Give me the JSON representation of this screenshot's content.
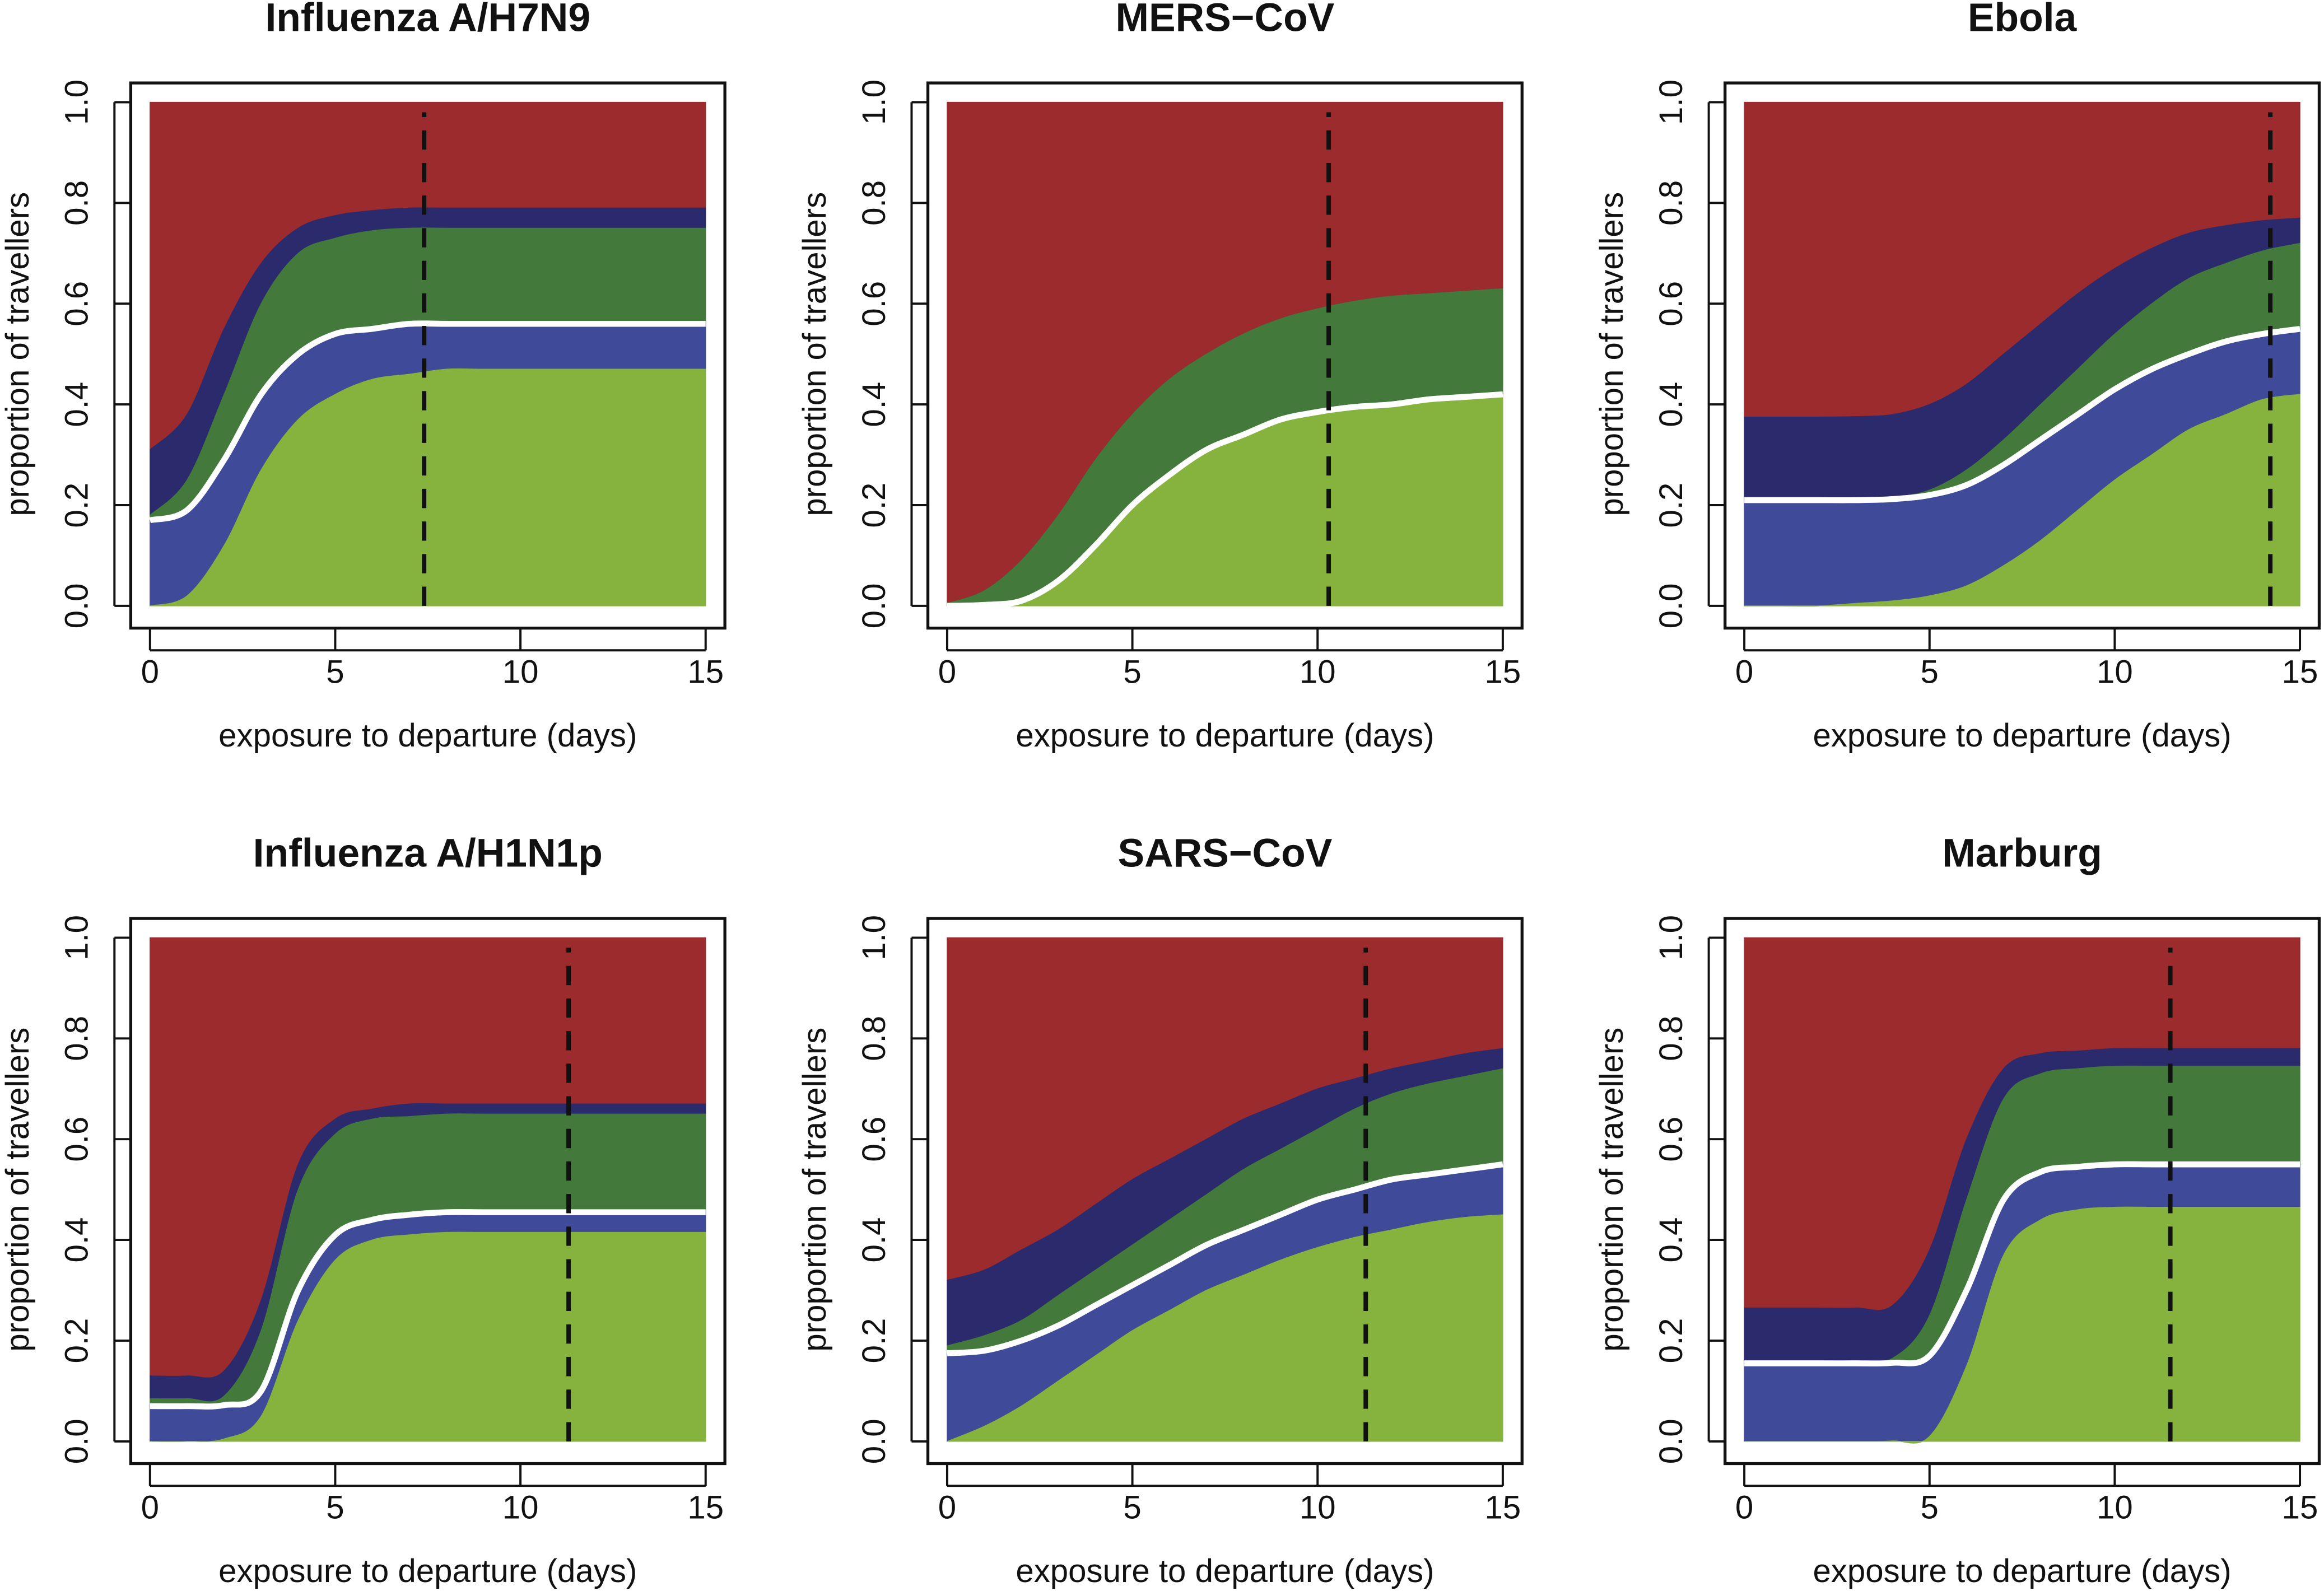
{
  "colors": {
    "band_fills": [
      "#86b33d",
      "#3f4a98",
      "#437a3c",
      "#2a2a6c",
      "#9c2b2d"
    ],
    "separator_line": "#ffffff",
    "dashed_line": "#111111"
  },
  "chart_data": [
    {
      "type": "area",
      "stacked": true,
      "title": "Influenza A/H7N9",
      "xlabel": "exposure to departure (days)",
      "ylabel": "proportion of travellers",
      "xlim": [
        0,
        15
      ],
      "ylim": [
        0,
        1
      ],
      "xticks": [
        "0",
        "5",
        "10",
        "15"
      ],
      "yticks": [
        "0.0",
        "0.2",
        "0.4",
        "0.6",
        "0.8",
        "1.0"
      ],
      "x": [
        0,
        1,
        2,
        3,
        4,
        5,
        6,
        7,
        8,
        9,
        10,
        11,
        12,
        13,
        14,
        15
      ],
      "cumulative_boundaries": [
        [
          0,
          0.02,
          0.12,
          0.27,
          0.37,
          0.42,
          0.45,
          0.46,
          0.47,
          0.47,
          0.47,
          0.47,
          0.47,
          0.47,
          0.47,
          0.47
        ],
        [
          0.17,
          0.19,
          0.29,
          0.42,
          0.5,
          0.54,
          0.55,
          0.56,
          0.56,
          0.56,
          0.56,
          0.56,
          0.56,
          0.56,
          0.56,
          0.56
        ],
        [
          0.18,
          0.25,
          0.42,
          0.6,
          0.7,
          0.73,
          0.745,
          0.75,
          0.75,
          0.75,
          0.75,
          0.75,
          0.75,
          0.75,
          0.75,
          0.75
        ],
        [
          0.31,
          0.38,
          0.55,
          0.68,
          0.75,
          0.775,
          0.785,
          0.79,
          0.79,
          0.79,
          0.79,
          0.79,
          0.79,
          0.79,
          0.79,
          0.79
        ],
        [
          1,
          1,
          1,
          1,
          1,
          1,
          1,
          1,
          1,
          1,
          1,
          1,
          1,
          1,
          1,
          1
        ]
      ],
      "white_line_boundary_index": 1,
      "dashed_vline_x": 7.4,
      "grid": false,
      "legend": "none"
    },
    {
      "type": "area",
      "stacked": true,
      "title": "MERS−CoV",
      "xlabel": "exposure to departure (days)",
      "ylabel": "proportion of travellers",
      "xlim": [
        0,
        15
      ],
      "ylim": [
        0,
        1
      ],
      "xticks": [
        "0",
        "5",
        "10",
        "15"
      ],
      "yticks": [
        "0.0",
        "0.2",
        "0.4",
        "0.6",
        "0.8",
        "1.0"
      ],
      "x": [
        0,
        1,
        2,
        3,
        4,
        5,
        6,
        7,
        8,
        9,
        10,
        11,
        12,
        13,
        14,
        15
      ],
      "cumulative_boundaries": [
        [
          0,
          0.002,
          0.01,
          0.05,
          0.12,
          0.2,
          0.26,
          0.31,
          0.34,
          0.37,
          0.385,
          0.395,
          0.4,
          0.41,
          0.415,
          0.42
        ],
        [
          0,
          0.002,
          0.01,
          0.05,
          0.12,
          0.2,
          0.26,
          0.31,
          0.34,
          0.37,
          0.385,
          0.395,
          0.4,
          0.41,
          0.415,
          0.42
        ],
        [
          0.005,
          0.03,
          0.09,
          0.18,
          0.29,
          0.38,
          0.45,
          0.5,
          0.54,
          0.57,
          0.59,
          0.605,
          0.615,
          0.62,
          0.625,
          0.63
        ],
        [
          0.005,
          0.03,
          0.09,
          0.18,
          0.29,
          0.38,
          0.45,
          0.5,
          0.54,
          0.57,
          0.59,
          0.605,
          0.615,
          0.62,
          0.625,
          0.63
        ],
        [
          1,
          1,
          1,
          1,
          1,
          1,
          1,
          1,
          1,
          1,
          1,
          1,
          1,
          1,
          1,
          1
        ]
      ],
      "white_line_boundary_index": 1,
      "dashed_vline_x": 10.3,
      "grid": false,
      "legend": "none"
    },
    {
      "type": "area",
      "stacked": true,
      "title": "Ebola",
      "xlabel": "exposure to departure (days)",
      "ylabel": "proportion of travellers",
      "xlim": [
        0,
        15
      ],
      "ylim": [
        0,
        1
      ],
      "xticks": [
        "0",
        "5",
        "10",
        "15"
      ],
      "yticks": [
        "0.0",
        "0.2",
        "0.4",
        "0.6",
        "0.8",
        "1.0"
      ],
      "x": [
        0,
        1,
        2,
        3,
        4,
        5,
        6,
        7,
        8,
        9,
        10,
        11,
        12,
        13,
        14,
        15
      ],
      "cumulative_boundaries": [
        [
          0,
          0,
          0,
          0.005,
          0.01,
          0.02,
          0.04,
          0.08,
          0.13,
          0.19,
          0.25,
          0.3,
          0.35,
          0.38,
          0.41,
          0.42
        ],
        [
          0.21,
          0.21,
          0.21,
          0.21,
          0.212,
          0.22,
          0.24,
          0.28,
          0.33,
          0.38,
          0.43,
          0.47,
          0.5,
          0.525,
          0.54,
          0.55
        ],
        [
          0.21,
          0.21,
          0.21,
          0.21,
          0.215,
          0.23,
          0.27,
          0.33,
          0.4,
          0.47,
          0.54,
          0.6,
          0.65,
          0.68,
          0.705,
          0.72
        ],
        [
          0.375,
          0.375,
          0.375,
          0.376,
          0.38,
          0.4,
          0.44,
          0.5,
          0.56,
          0.62,
          0.67,
          0.71,
          0.74,
          0.755,
          0.765,
          0.77
        ],
        [
          1,
          1,
          1,
          1,
          1,
          1,
          1,
          1,
          1,
          1,
          1,
          1,
          1,
          1,
          1,
          1
        ]
      ],
      "white_line_boundary_index": 1,
      "dashed_vline_x": 14.2,
      "grid": false,
      "legend": "none"
    },
    {
      "type": "area",
      "stacked": true,
      "title": "Influenza A/H1N1p",
      "xlabel": "exposure to departure (days)",
      "ylabel": "proportion of travellers",
      "xlim": [
        0,
        15
      ],
      "ylim": [
        0,
        1
      ],
      "xticks": [
        "0",
        "5",
        "10",
        "15"
      ],
      "yticks": [
        "0.0",
        "0.2",
        "0.4",
        "0.6",
        "0.8",
        "1.0"
      ],
      "x": [
        0,
        1,
        2,
        3,
        4,
        5,
        6,
        7,
        8,
        9,
        10,
        11,
        12,
        13,
        14,
        15
      ],
      "cumulative_boundaries": [
        [
          0,
          0,
          0.005,
          0.05,
          0.24,
          0.36,
          0.4,
          0.41,
          0.415,
          0.415,
          0.415,
          0.415,
          0.415,
          0.415,
          0.415,
          0.415
        ],
        [
          0.07,
          0.07,
          0.072,
          0.1,
          0.3,
          0.41,
          0.44,
          0.45,
          0.455,
          0.455,
          0.455,
          0.455,
          0.455,
          0.455,
          0.455,
          0.455
        ],
        [
          0.085,
          0.085,
          0.09,
          0.22,
          0.5,
          0.61,
          0.64,
          0.645,
          0.65,
          0.65,
          0.65,
          0.65,
          0.65,
          0.65,
          0.65,
          0.65
        ],
        [
          0.13,
          0.13,
          0.14,
          0.28,
          0.55,
          0.64,
          0.66,
          0.67,
          0.67,
          0.67,
          0.67,
          0.67,
          0.67,
          0.67,
          0.67,
          0.67
        ],
        [
          1,
          1,
          1,
          1,
          1,
          1,
          1,
          1,
          1,
          1,
          1,
          1,
          1,
          1,
          1,
          1
        ]
      ],
      "white_line_boundary_index": 1,
      "dashed_vline_x": 11.3,
      "grid": false,
      "legend": "none"
    },
    {
      "type": "area",
      "stacked": true,
      "title": "SARS−CoV",
      "xlabel": "exposure to departure (days)",
      "ylabel": "proportion of travellers",
      "xlim": [
        0,
        15
      ],
      "ylim": [
        0,
        1
      ],
      "xticks": [
        "0",
        "5",
        "10",
        "15"
      ],
      "yticks": [
        "0.0",
        "0.2",
        "0.4",
        "0.6",
        "0.8",
        "1.0"
      ],
      "x": [
        0,
        1,
        2,
        3,
        4,
        5,
        6,
        7,
        8,
        9,
        10,
        11,
        12,
        13,
        14,
        15
      ],
      "cumulative_boundaries": [
        [
          0,
          0.03,
          0.07,
          0.12,
          0.17,
          0.22,
          0.26,
          0.3,
          0.33,
          0.36,
          0.385,
          0.405,
          0.42,
          0.435,
          0.445,
          0.45
        ],
        [
          0.175,
          0.18,
          0.2,
          0.23,
          0.27,
          0.31,
          0.35,
          0.39,
          0.42,
          0.45,
          0.48,
          0.5,
          0.52,
          0.53,
          0.54,
          0.55
        ],
        [
          0.19,
          0.21,
          0.24,
          0.29,
          0.34,
          0.39,
          0.44,
          0.49,
          0.54,
          0.58,
          0.62,
          0.66,
          0.69,
          0.71,
          0.725,
          0.74
        ],
        [
          0.32,
          0.34,
          0.38,
          0.42,
          0.47,
          0.52,
          0.56,
          0.6,
          0.64,
          0.67,
          0.7,
          0.72,
          0.74,
          0.755,
          0.77,
          0.78
        ],
        [
          1,
          1,
          1,
          1,
          1,
          1,
          1,
          1,
          1,
          1,
          1,
          1,
          1,
          1,
          1,
          1
        ]
      ],
      "white_line_boundary_index": 1,
      "dashed_vline_x": 11.3,
      "grid": false,
      "legend": "none"
    },
    {
      "type": "area",
      "stacked": true,
      "title": "Marburg",
      "xlabel": "exposure to departure (days)",
      "ylabel": "proportion of travellers",
      "xlim": [
        0,
        15
      ],
      "ylim": [
        0,
        1
      ],
      "xticks": [
        "0",
        "5",
        "10",
        "15"
      ],
      "yticks": [
        "0.0",
        "0.2",
        "0.4",
        "0.6",
        "0.8",
        "1.0"
      ],
      "x": [
        0,
        1,
        2,
        3,
        4,
        5,
        6,
        7,
        8,
        9,
        10,
        11,
        12,
        13,
        14,
        15
      ],
      "cumulative_boundaries": [
        [
          0,
          0,
          0,
          0,
          0.001,
          0.01,
          0.15,
          0.37,
          0.44,
          0.46,
          0.465,
          0.465,
          0.465,
          0.465,
          0.465,
          0.465
        ],
        [
          0.155,
          0.155,
          0.155,
          0.155,
          0.156,
          0.17,
          0.3,
          0.48,
          0.535,
          0.545,
          0.55,
          0.55,
          0.55,
          0.55,
          0.55,
          0.55
        ],
        [
          0.16,
          0.16,
          0.16,
          0.16,
          0.165,
          0.25,
          0.48,
          0.68,
          0.73,
          0.74,
          0.745,
          0.745,
          0.745,
          0.745,
          0.745,
          0.745
        ],
        [
          0.265,
          0.265,
          0.265,
          0.265,
          0.27,
          0.38,
          0.6,
          0.74,
          0.77,
          0.775,
          0.78,
          0.78,
          0.78,
          0.78,
          0.78,
          0.78
        ],
        [
          1,
          1,
          1,
          1,
          1,
          1,
          1,
          1,
          1,
          1,
          1,
          1,
          1,
          1,
          1,
          1
        ]
      ],
      "white_line_boundary_index": 1,
      "dashed_vline_x": 11.5,
      "grid": false,
      "legend": "none"
    }
  ]
}
